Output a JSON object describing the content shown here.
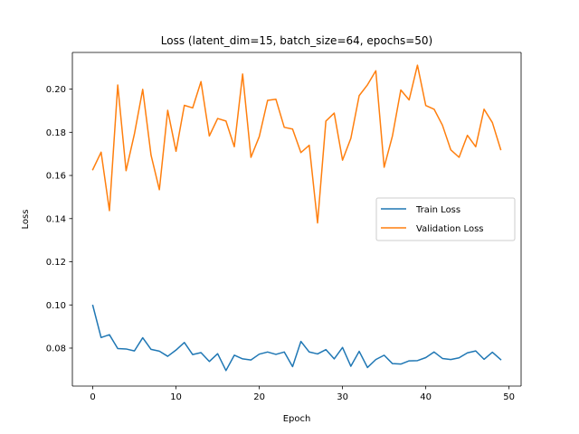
{
  "chart_data": {
    "type": "line",
    "title": "Loss (latent_dim=15, batch_size=64, epochs=50)",
    "xlabel": "Epoch",
    "ylabel": "Loss",
    "xlim": [
      -2.45,
      51.45
    ],
    "ylim": [
      0.0624,
      0.217
    ],
    "xticks": [
      0,
      10,
      20,
      30,
      40,
      50
    ],
    "yticks": [
      0.08,
      0.1,
      0.12,
      0.14,
      0.16,
      0.18,
      0.2
    ],
    "ytick_labels": [
      "0.08",
      "0.10",
      "0.12",
      "0.14",
      "0.16",
      "0.18",
      "0.20"
    ],
    "grid": false,
    "legend": "center-right",
    "x": [
      0,
      1,
      2,
      3,
      4,
      5,
      6,
      7,
      8,
      9,
      10,
      11,
      12,
      13,
      14,
      15,
      16,
      17,
      18,
      19,
      20,
      21,
      22,
      23,
      24,
      25,
      26,
      27,
      28,
      29,
      30,
      31,
      32,
      33,
      34,
      35,
      36,
      37,
      38,
      39,
      40,
      41,
      42,
      43,
      44,
      45,
      46,
      47,
      48,
      49
    ],
    "series": [
      {
        "name": "Train Loss",
        "color": "#1f77b4",
        "values": [
          0.0998,
          0.0849,
          0.0862,
          0.0798,
          0.0796,
          0.0787,
          0.0848,
          0.0794,
          0.0786,
          0.0762,
          0.0791,
          0.0826,
          0.077,
          0.0779,
          0.0738,
          0.0774,
          0.0696,
          0.0767,
          0.075,
          0.0745,
          0.0772,
          0.0782,
          0.0771,
          0.0782,
          0.0714,
          0.0831,
          0.0782,
          0.0773,
          0.0793,
          0.075,
          0.0803,
          0.0716,
          0.0785,
          0.071,
          0.0747,
          0.0767,
          0.0728,
          0.0726,
          0.0741,
          0.0742,
          0.0756,
          0.0782,
          0.0752,
          0.0747,
          0.0755,
          0.0778,
          0.0787,
          0.0748,
          0.0781,
          0.0747
        ]
      },
      {
        "name": "Validation Loss",
        "color": "#ff7f0e",
        "values": [
          0.1627,
          0.1708,
          0.1437,
          0.2019,
          0.1622,
          0.1792,
          0.1999,
          0.1694,
          0.1534,
          0.1902,
          0.1712,
          0.1925,
          0.1913,
          0.2035,
          0.1783,
          0.1864,
          0.1852,
          0.1733,
          0.207,
          0.1684,
          0.178,
          0.1948,
          0.1953,
          0.1823,
          0.1815,
          0.1706,
          0.174,
          0.138,
          0.1852,
          0.1889,
          0.1671,
          0.1772,
          0.197,
          0.202,
          0.2085,
          0.1638,
          0.1784,
          0.1996,
          0.195,
          0.2111,
          0.1924,
          0.1907,
          0.1833,
          0.1719,
          0.1684,
          0.1786,
          0.1733,
          0.1907,
          0.1845,
          0.172
        ]
      }
    ]
  }
}
